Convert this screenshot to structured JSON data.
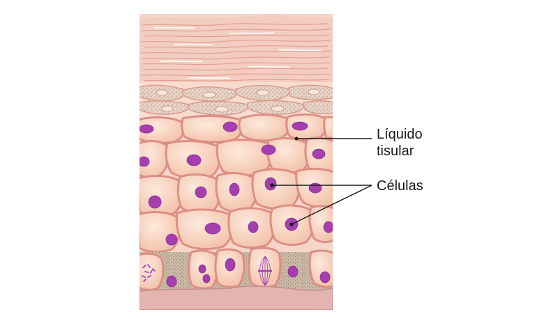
{
  "labels": {
    "tissue_fluid_line1": "Líquido",
    "tissue_fluid_line2": "tisular",
    "cells": "Células"
  },
  "colors": {
    "background": "#ffffff",
    "stratum_corneum": "#f3c9bd",
    "stratum_corneum_lines": "#e6a595",
    "cell_fill": "#f6cdb5",
    "cell_outline": "#dc8f86",
    "interstitial_fluid": "#f9dfd1",
    "nucleus": "#a53fae",
    "basal_granules": "#c8b6a1",
    "dermis": "#e3b4b0",
    "leader_line": "#1a1a1a"
  }
}
